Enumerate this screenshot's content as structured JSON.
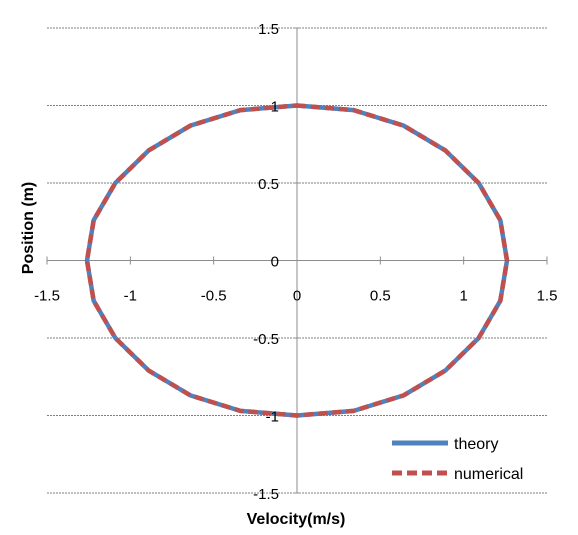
{
  "chart_data": {
    "type": "line",
    "title": "",
    "xlabel": "Velocity(m/s)",
    "ylabel": "Position (m)",
    "xlim": [
      -1.5,
      1.5
    ],
    "ylim": [
      -1.5,
      1.5
    ],
    "xticks": [
      "-1.5",
      "-1",
      "-0.5",
      "0",
      "0.5",
      "1",
      "1.5"
    ],
    "yticks": [
      "1.5",
      "1",
      "0.5",
      "0",
      "-0.5",
      "-1",
      "-1.5"
    ],
    "xtick_values": [
      -1.5,
      -1,
      -0.5,
      0,
      0.5,
      1,
      1.5
    ],
    "ytick_values": [
      1.5,
      1,
      0.5,
      0,
      -0.5,
      -1,
      -1.5
    ],
    "grid": "horizontal",
    "legend_position": "bottom-right",
    "series": [
      {
        "name": "theory",
        "color": "#4F81BD",
        "style": "solid",
        "x": [
          0,
          0.34,
          0.64,
          0.89,
          1.09,
          1.22,
          1.26,
          1.22,
          1.09,
          0.89,
          0.64,
          0.34,
          0,
          -0.34,
          -0.64,
          -0.89,
          -1.09,
          -1.22,
          -1.26,
          -1.22,
          -1.09,
          -0.89,
          -0.64,
          -0.34,
          0
        ],
        "y": [
          1,
          0.97,
          0.87,
          0.71,
          0.5,
          0.26,
          0,
          -0.26,
          -0.5,
          -0.71,
          -0.87,
          -0.97,
          -1,
          -0.97,
          -0.87,
          -0.71,
          -0.5,
          -0.26,
          0,
          0.26,
          0.5,
          0.71,
          0.87,
          0.97,
          1
        ]
      },
      {
        "name": "numerical",
        "color": "#C0504D",
        "style": "dashed",
        "x": [
          0,
          0.34,
          0.64,
          0.89,
          1.09,
          1.22,
          1.26,
          1.22,
          1.09,
          0.89,
          0.64,
          0.34,
          0,
          -0.34,
          -0.64,
          -0.89,
          -1.09,
          -1.22,
          -1.26,
          -1.22,
          -1.09,
          -0.89,
          -0.64,
          -0.34,
          0
        ],
        "y": [
          1,
          0.97,
          0.87,
          0.71,
          0.5,
          0.26,
          0,
          -0.26,
          -0.5,
          -0.71,
          -0.87,
          -0.97,
          -1,
          -0.97,
          -0.87,
          -0.71,
          -0.5,
          -0.26,
          0,
          0.26,
          0.5,
          0.71,
          0.87,
          0.97,
          1
        ]
      }
    ]
  }
}
